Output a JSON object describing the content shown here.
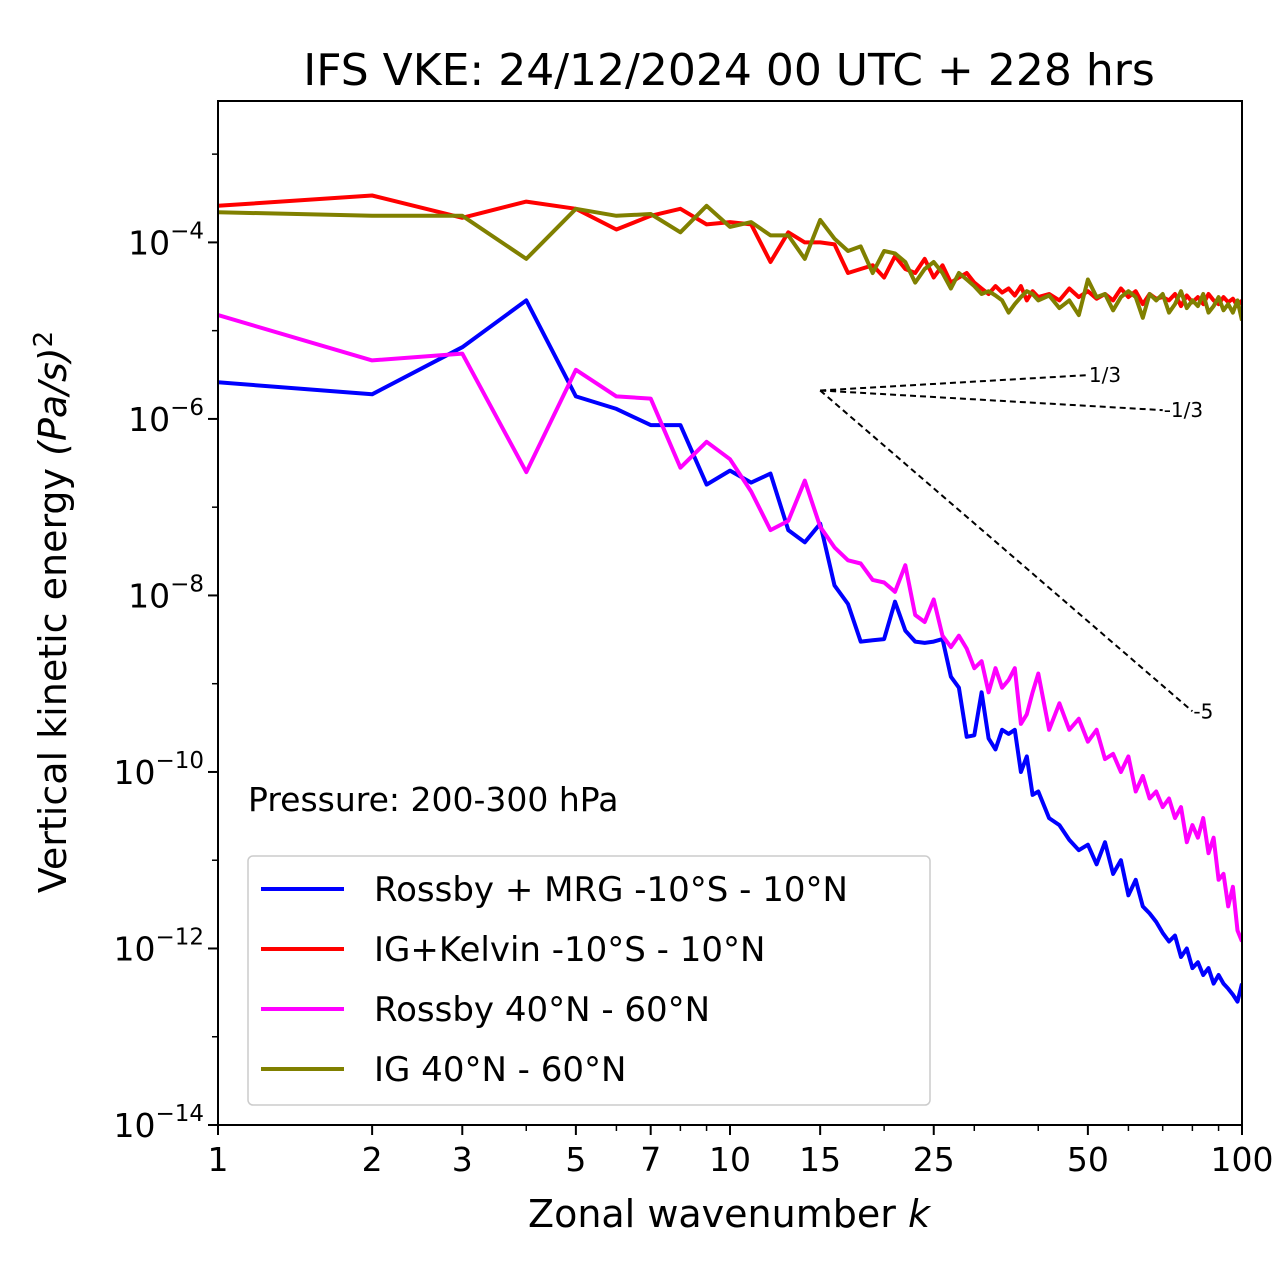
{
  "chart_data": {
    "type": "line",
    "title": "IFS VKE: 24/12/2024 00 UTC + 228 hrs",
    "xlabel": "Zonal wavenumber",
    "xlabel_var": "k",
    "ylabel": "Vertical kinetic energy",
    "ylabel_unit": "(Pa/s)",
    "ylabel_unit_exp": "2",
    "xscale": "log",
    "yscale": "log",
    "xlim": [
      1,
      100
    ],
    "ylim": [
      1e-14,
      0.004
    ],
    "xticks": [
      1,
      2,
      3,
      5,
      7,
      10,
      15,
      25,
      50,
      100
    ],
    "xtick_labels": [
      "1",
      "2",
      "3",
      "5",
      "7",
      "10",
      "15",
      "25",
      "50",
      "100"
    ],
    "yticks": [
      -14,
      -12,
      -10,
      -8,
      -6,
      -4
    ],
    "ytick_labels": [
      {
        "base": "10",
        "exp": "−14"
      },
      {
        "base": "10",
        "exp": "−12"
      },
      {
        "base": "10",
        "exp": "−10"
      },
      {
        "base": "10",
        "exp": "−8"
      },
      {
        "base": "10",
        "exp": "−6"
      },
      {
        "base": "10",
        "exp": "−4"
      }
    ],
    "annotation": "Pressure: 200-300 hPa",
    "legend_position": "lower-left",
    "slopes": [
      {
        "label": "1/3",
        "exponent": 0.3333,
        "k0": 15,
        "k1": 50,
        "y0": 2.1e-06
      },
      {
        "label": "-1/3",
        "exponent": -0.3333,
        "k0": 15,
        "k1": 70,
        "y0": 2.1e-06
      },
      {
        "label": "-5",
        "exponent": -5,
        "k0": 15,
        "k1": 80,
        "y0": 2.1e-06
      }
    ],
    "series": [
      {
        "name": "Rossby + MRG -10°S - 10°N",
        "color": "#0000ff",
        "x": [
          1,
          2,
          3,
          4,
          5,
          6,
          7,
          8,
          9,
          10,
          11,
          12,
          13,
          14,
          15,
          16,
          17,
          18,
          19,
          20,
          21,
          22,
          23,
          24,
          25,
          26,
          27,
          28,
          29,
          30,
          31,
          32,
          33,
          34,
          35,
          36,
          37,
          38,
          39,
          40,
          42,
          44,
          46,
          48,
          50,
          52,
          54,
          56,
          58,
          60,
          62,
          64,
          66,
          68,
          70,
          72,
          74,
          76,
          78,
          80,
          82,
          84,
          86,
          88,
          90,
          92,
          94,
          96,
          98,
          100
        ],
        "y": [
          2.6e-06,
          1.9e-06,
          6.5e-06,
          2.2e-05,
          1.8e-06,
          1.3e-06,
          8.5e-07,
          8.5e-07,
          1.8e-07,
          2.6e-07,
          1.9e-07,
          2.4e-07,
          5.5e-08,
          4e-08,
          6.5e-08,
          1.3e-08,
          8e-09,
          3e-09,
          3.1e-09,
          3.2e-09,
          8.5e-09,
          4e-09,
          3e-09,
          2.9e-09,
          3e-09,
          3.2e-09,
          1.2e-09,
          9e-10,
          2.5e-10,
          2.6e-10,
          8e-10,
          2.4e-10,
          1.8e-10,
          3e-10,
          2.7e-10,
          3e-10,
          1e-10,
          1.5e-10,
          5.5e-11,
          6e-11,
          3e-11,
          2.5e-11,
          1.7e-11,
          1.3e-11,
          1.5e-11,
          9e-12,
          1.6e-11,
          7e-12,
          1e-11,
          4e-12,
          6e-12,
          3e-12,
          2.5e-12,
          2e-12,
          1.5e-12,
          1.2e-12,
          1.4e-12,
          8e-13,
          1e-12,
          6e-13,
          7e-13,
          5e-13,
          6e-13,
          4e-13,
          5e-13,
          4e-13,
          3.5e-13,
          3e-13,
          2.5e-13,
          4e-13
        ]
      },
      {
        "name": "IG+Kelvin -10°S - 10°N",
        "color": "#ff0000",
        "x": [
          1,
          2,
          3,
          4,
          5,
          6,
          7,
          8,
          9,
          10,
          11,
          12,
          13,
          14,
          15,
          16,
          17,
          18,
          19,
          20,
          21,
          22,
          23,
          24,
          25,
          26,
          27,
          28,
          29,
          30,
          31,
          32,
          33,
          34,
          35,
          36,
          37,
          38,
          39,
          40,
          42,
          44,
          46,
          48,
          50,
          52,
          54,
          56,
          58,
          60,
          62,
          64,
          66,
          68,
          70,
          72,
          74,
          76,
          78,
          80,
          82,
          84,
          86,
          88,
          90,
          92,
          94,
          96,
          98,
          100
        ],
        "y": [
          0.00026,
          0.00034,
          0.00019,
          0.00029,
          0.00024,
          0.00014,
          0.0002,
          0.00024,
          0.00016,
          0.00017,
          0.00016,
          6e-05,
          0.00013,
          0.0001,
          0.0001,
          9.5e-05,
          4.5e-05,
          5e-05,
          5.5e-05,
          4e-05,
          7e-05,
          5e-05,
          4.5e-05,
          6.5e-05,
          4e-05,
          5.5e-05,
          3.5e-05,
          4e-05,
          4.5e-05,
          3.5e-05,
          3e-05,
          2.6e-05,
          3.2e-05,
          2.7e-05,
          3e-05,
          2.5e-05,
          3.2e-05,
          2.2e-05,
          2.8e-05,
          2.4e-05,
          2.6e-05,
          2.2e-05,
          3e-05,
          2.4e-05,
          2.8e-05,
          2.3e-05,
          2.6e-05,
          2.2e-05,
          3e-05,
          2.4e-05,
          2.8e-05,
          2e-05,
          2.6e-05,
          2.3e-05,
          2.4e-05,
          2.2e-05,
          2.6e-05,
          1.9e-05,
          2.5e-05,
          2.1e-05,
          2.4e-05,
          2e-05,
          2.6e-05,
          2.2e-05,
          2e-05,
          2.4e-05,
          2.1e-05,
          2.3e-05,
          1.9e-05,
          2.2e-05
        ]
      },
      {
        "name": "Rossby 40°N - 60°N",
        "color": "#ff00ff",
        "x": [
          1,
          2,
          3,
          4,
          5,
          6,
          7,
          8,
          9,
          10,
          11,
          12,
          13,
          14,
          15,
          16,
          17,
          18,
          19,
          20,
          21,
          22,
          23,
          24,
          25,
          26,
          27,
          28,
          29,
          30,
          31,
          32,
          33,
          34,
          35,
          36,
          37,
          38,
          39,
          40,
          42,
          44,
          46,
          48,
          50,
          52,
          54,
          56,
          58,
          60,
          62,
          64,
          66,
          68,
          70,
          72,
          74,
          76,
          78,
          80,
          82,
          84,
          86,
          88,
          90,
          92,
          94,
          96,
          98,
          100
        ],
        "y": [
          1.5e-05,
          4.6e-06,
          5.5e-06,
          2.5e-07,
          3.6e-06,
          1.8e-06,
          1.7e-06,
          2.8e-07,
          5.5e-07,
          3.5e-07,
          1.5e-07,
          5.5e-08,
          7e-08,
          2e-07,
          6e-08,
          3.5e-08,
          2.5e-08,
          2.3e-08,
          1.5e-08,
          1.4e-08,
          1.1e-08,
          2.2e-08,
          6e-09,
          5e-09,
          9e-09,
          3.5e-09,
          2.6e-09,
          3.5e-09,
          2.5e-09,
          1.5e-09,
          1.8e-09,
          8e-10,
          1.5e-09,
          9e-10,
          1.1e-09,
          1.5e-09,
          3.5e-10,
          4.5e-10,
          8e-10,
          1.3e-09,
          3e-10,
          6e-10,
          3e-10,
          4e-10,
          2.2e-10,
          3e-10,
          1.4e-10,
          1.6e-10,
          1e-10,
          1.5e-10,
          6e-11,
          9e-11,
          5e-11,
          6e-11,
          4e-11,
          5e-11,
          3e-11,
          4e-11,
          1.6e-11,
          2.5e-11,
          1.8e-11,
          3e-11,
          1.2e-11,
          1.8e-11,
          6e-12,
          7e-12,
          3e-12,
          5e-12,
          1.6e-12,
          1.2e-12
        ]
      },
      {
        "name": "IG 40°N - 60°N",
        "color": "#808000",
        "x": [
          1,
          2,
          3,
          4,
          5,
          6,
          7,
          8,
          9,
          10,
          11,
          12,
          13,
          14,
          15,
          16,
          17,
          18,
          19,
          20,
          21,
          22,
          23,
          24,
          25,
          26,
          27,
          28,
          29,
          30,
          31,
          32,
          33,
          34,
          35,
          36,
          37,
          38,
          39,
          40,
          42,
          44,
          46,
          48,
          50,
          52,
          54,
          56,
          58,
          60,
          62,
          64,
          66,
          68,
          70,
          72,
          74,
          76,
          78,
          80,
          82,
          84,
          86,
          88,
          90,
          92,
          94,
          96,
          98,
          100
        ],
        "y": [
          0.00022,
          0.0002,
          0.0002,
          6.5e-05,
          0.00024,
          0.0002,
          0.00021,
          0.00013,
          0.00026,
          0.00015,
          0.00017,
          0.00012,
          0.00012,
          6.5e-05,
          0.00018,
          0.00011,
          8e-05,
          9e-05,
          4.5e-05,
          8e-05,
          7.5e-05,
          6e-05,
          3.5e-05,
          5e-05,
          6e-05,
          4.5e-05,
          3e-05,
          4.5e-05,
          3.8e-05,
          3.2e-05,
          2.6e-05,
          2.8e-05,
          2.5e-05,
          2.2e-05,
          1.6e-05,
          2e-05,
          2.4e-05,
          2.8e-05,
          2.6e-05,
          2.2e-05,
          2.5e-05,
          1.8e-05,
          2.2e-05,
          1.5e-05,
          3.8e-05,
          2.4e-05,
          2.6e-05,
          1.7e-05,
          2.4e-05,
          2.8e-05,
          2.4e-05,
          1.4e-05,
          2.6e-05,
          2.2e-05,
          2.6e-05,
          1.6e-05,
          2e-05,
          2.8e-05,
          1.8e-05,
          2.2e-05,
          1.9e-05,
          2.6e-05,
          1.6e-05,
          1.9e-05,
          2.4e-05,
          1.7e-05,
          2e-05,
          1.6e-05,
          2.2e-05,
          1.3e-05
        ]
      }
    ]
  }
}
